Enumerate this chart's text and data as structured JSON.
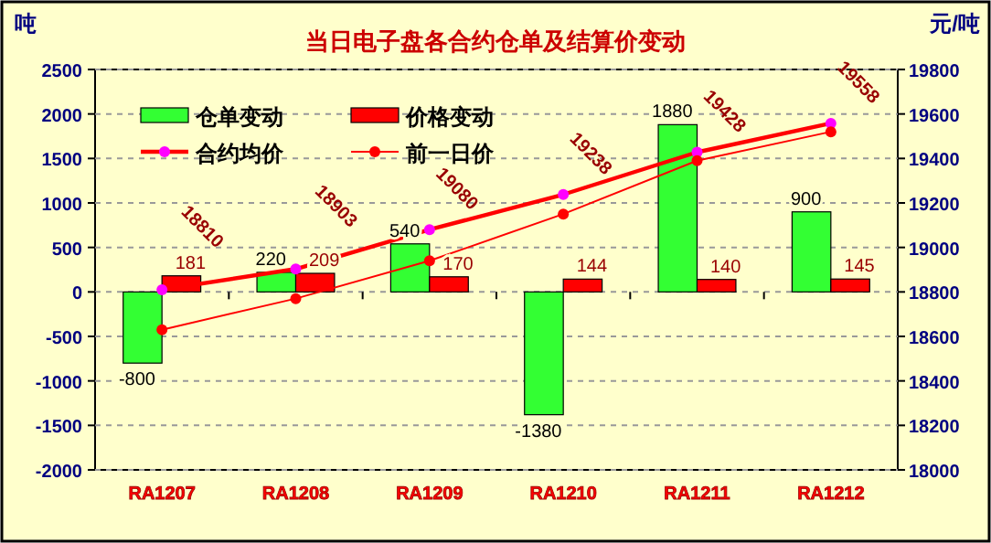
{
  "chart_data": {
    "type": "bar",
    "title": "当日电子盘各合约仓单及结算价变动",
    "ylabel": "吨",
    "y2label": "元/吨",
    "categories": [
      "RA1207",
      "RA1208",
      "RA1209",
      "RA1210",
      "RA1211",
      "RA1212"
    ],
    "series": [
      {
        "name": "仓单变动",
        "color": "#33ff33",
        "values": [
          -800,
          220,
          540,
          -1380,
          1880,
          900
        ],
        "value_labels": [
          "-800",
          "220",
          "540",
          "-1380",
          "1880",
          "900"
        ]
      },
      {
        "name": "价格变动",
        "color": "#ff0000",
        "values": [
          181,
          209,
          170,
          144,
          140,
          145
        ],
        "value_labels": [
          "181",
          "209",
          "170",
          "144",
          "140",
          "145"
        ]
      },
      {
        "name": "合约均价",
        "type": "line",
        "axis": "y2",
        "color": "#ff0000",
        "colors": [
          "#ff00ff",
          "#ff00ff",
          "#ff00ff",
          "#ff00ff",
          "#ff00ff",
          "#ff00ff"
        ],
        "values": [
          18810,
          18903,
          19080,
          19238,
          19428,
          19558
        ],
        "value_labels": [
          "18810",
          "18903",
          "19080",
          "19238",
          "19428",
          "19558"
        ]
      },
      {
        "name": "前一日价",
        "type": "line",
        "axis": "y2",
        "color": "#ff0000",
        "values": [
          18630,
          18770,
          18940,
          19150,
          19390,
          19520
        ]
      }
    ],
    "ylim": [
      -2000,
      2500
    ],
    "yticks": [
      -2000,
      -1500,
      -1000,
      -500,
      0,
      500,
      1000,
      1500,
      2000,
      2500
    ],
    "y2lim": [
      18000,
      19800
    ],
    "y2ticks": [
      18000,
      18200,
      18400,
      18600,
      18800,
      19000,
      19200,
      19400,
      19600,
      19800
    ],
    "grid": "y",
    "legend": "top left",
    "marker": "circle"
  }
}
